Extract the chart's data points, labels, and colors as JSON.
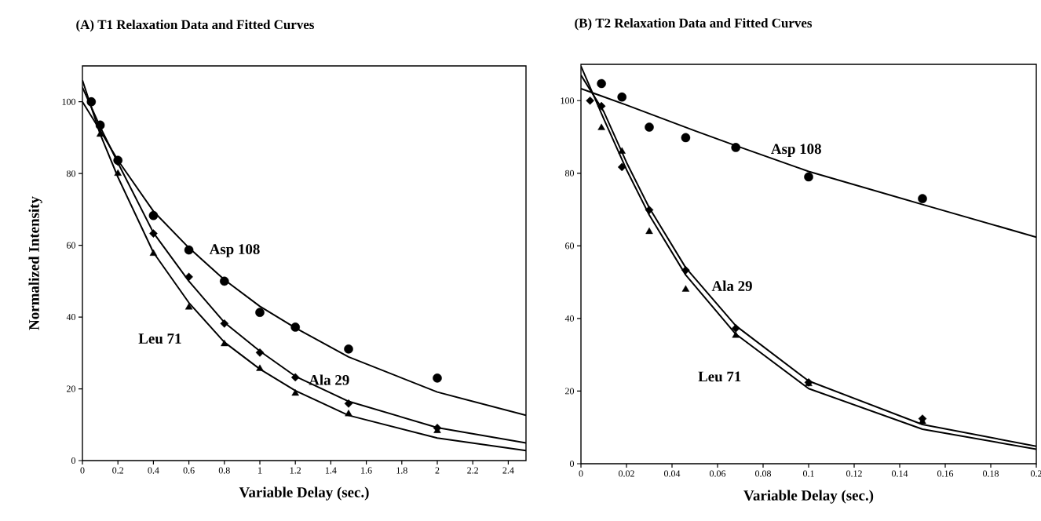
{
  "chart_data": [
    {
      "type": "scatter",
      "title": "(A) T1 Relaxation Data and Fitted Curves",
      "xlabel": "Variable Delay (sec.)",
      "ylabel": "Normalized Intensity",
      "xlim": [
        0,
        2.5
      ],
      "ylim": [
        0,
        110
      ],
      "xticks": [
        0,
        0.2,
        0.4,
        0.6,
        0.8,
        1,
        1.2,
        1.4,
        1.6,
        1.8,
        2,
        2.2,
        2.4
      ],
      "yticks": [
        0,
        20,
        40,
        60,
        80,
        100
      ],
      "grid": false,
      "series": [
        {
          "name": "Asp 108",
          "marker": "circle",
          "color": "#000000",
          "x": [
            0.05,
            0.1,
            0.2,
            0.4,
            0.6,
            0.8,
            1.0,
            1.2,
            1.5,
            2.0
          ],
          "values": [
            100,
            93.5,
            83.7,
            68.3,
            58.7,
            50,
            41.3,
            37.2,
            31.1,
            23
          ]
        },
        {
          "name": "Ala 29",
          "marker": "diamond",
          "color": "#000000",
          "x": [
            0.1,
            0.2,
            0.4,
            0.6,
            0.8,
            1.0,
            1.2,
            1.5,
            2.0
          ],
          "values": [
            93,
            83.3,
            63.3,
            51.2,
            38.2,
            30.1,
            23.2,
            15.9,
            9.1
          ]
        },
        {
          "name": "Leu 71",
          "marker": "triangle",
          "color": "#000000",
          "x": [
            0.1,
            0.2,
            0.4,
            0.6,
            0.8,
            1.0,
            1.2,
            1.5,
            2.0
          ],
          "values": [
            90.9,
            80,
            57.7,
            42.7,
            32.5,
            25.6,
            18.7,
            13,
            8.3
          ]
        },
        {
          "type": "line",
          "marker": "none",
          "color": "#000000",
          "x": [
            0,
            0.1,
            0.2,
            0.4,
            0.6,
            0.8,
            1.0,
            1.2,
            1.5,
            2.0,
            2.5
          ],
          "values": [
            100,
            92,
            83.7,
            69.5,
            59.3,
            50.4,
            43,
            37,
            28.9,
            19.1,
            12.6
          ]
        },
        {
          "type": "line",
          "marker": "none",
          "color": "#000000",
          "x": [
            0,
            0.1,
            0.2,
            0.4,
            0.6,
            0.8,
            1.0,
            1.2,
            1.5,
            2.0,
            2.5
          ],
          "values": [
            104,
            93,
            83,
            63.5,
            50,
            38.5,
            30.5,
            23.5,
            16.5,
            9.2,
            4.9
          ]
        },
        {
          "type": "line",
          "marker": "none",
          "color": "#000000",
          "x": [
            0,
            0.1,
            0.2,
            0.4,
            0.6,
            0.8,
            1.0,
            1.2,
            1.5,
            2.0,
            2.5
          ],
          "values": [
            106,
            91,
            79,
            58,
            44,
            33,
            25.5,
            19.5,
            12.6,
            6.3,
            2.8
          ]
        }
      ]
    },
    {
      "type": "scatter",
      "title": "(B) T2 Relaxation Data and Fitted Curves",
      "xlabel": "Variable Delay (sec.)",
      "xlim": [
        0,
        0.2
      ],
      "ylim": [
        0,
        110
      ],
      "xticks": [
        0,
        0.02,
        0.04,
        0.06,
        0.08,
        0.1,
        0.12,
        0.14,
        0.16,
        0.18,
        0.2
      ],
      "yticks": [
        0,
        20,
        40,
        60,
        80,
        100
      ],
      "grid": false,
      "series": [
        {
          "name": "Asp 108",
          "marker": "circle",
          "color": "#000000",
          "x": [
            0.009,
            0.018,
            0.03,
            0.046,
            0.068,
            0.1,
            0.15
          ],
          "values": [
            104.7,
            101,
            92.7,
            89.8,
            87.1,
            79,
            73
          ]
        },
        {
          "name": "Ala 29",
          "marker": "diamond",
          "color": "#000000",
          "x": [
            0.004,
            0.009,
            0.018,
            0.03,
            0.046,
            0.068,
            0.1,
            0.15
          ],
          "values": [
            100,
            98.5,
            81.7,
            69.9,
            53.3,
            37.3,
            22.4,
            12.4
          ]
        },
        {
          "name": "Leu 71",
          "marker": "triangle",
          "color": "#000000",
          "x": [
            0.009,
            0.018,
            0.03,
            0.046,
            0.068,
            0.1,
            0.15
          ],
          "values": [
            92.5,
            86,
            63.9,
            48,
            35.3,
            22,
            11.6
          ]
        },
        {
          "type": "line",
          "marker": "none",
          "color": "#000000",
          "x": [
            0,
            0.02,
            0.05,
            0.068,
            0.1,
            0.15,
            0.2
          ],
          "values": [
            103.3,
            98.8,
            91.7,
            87.6,
            80.5,
            71.4,
            62.4
          ]
        },
        {
          "type": "line",
          "marker": "none",
          "color": "#000000",
          "x": [
            0,
            0.01,
            0.02,
            0.03,
            0.046,
            0.068,
            0.1,
            0.15,
            0.2
          ],
          "values": [
            107,
            97,
            83,
            70.5,
            54,
            38,
            22.8,
            10.8,
            4.8
          ]
        },
        {
          "type": "line",
          "marker": "none",
          "color": "#000000",
          "x": [
            0,
            0.01,
            0.02,
            0.03,
            0.046,
            0.068,
            0.1,
            0.15,
            0.2
          ],
          "values": [
            109.5,
            95,
            81,
            68.5,
            52,
            35.7,
            20.7,
            9.5,
            4
          ]
        }
      ]
    }
  ]
}
